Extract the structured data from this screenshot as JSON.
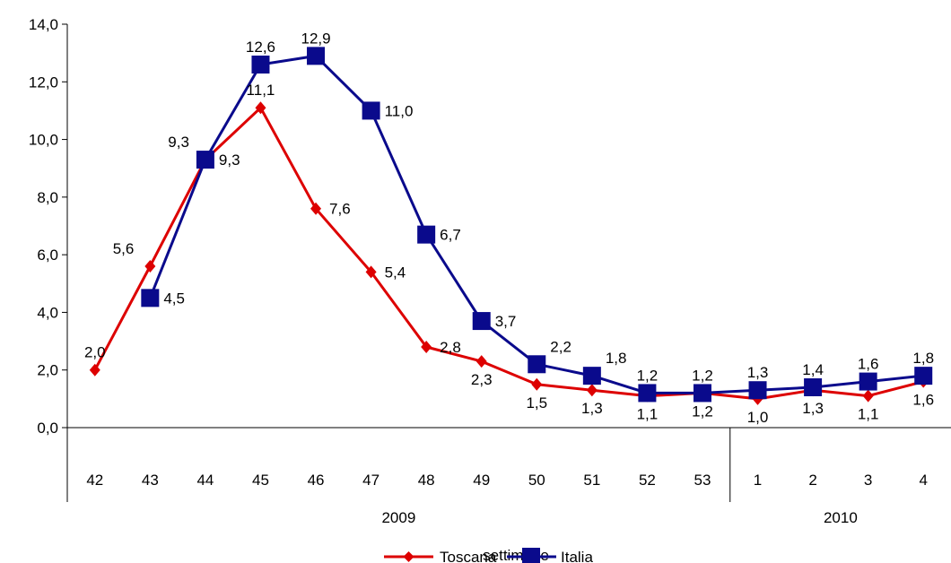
{
  "chart_data": {
    "type": "line",
    "x": [
      "42",
      "43",
      "44",
      "45",
      "46",
      "47",
      "48",
      "49",
      "50",
      "51",
      "52",
      "53",
      "1",
      "2",
      "3",
      "4"
    ],
    "groups": [
      {
        "label": "2009",
        "count": 12
      },
      {
        "label": "2010",
        "count": 4
      }
    ],
    "xlabel": "settimane",
    "ylabel": "",
    "ylim": [
      0,
      14
    ],
    "yticks": [
      "0,0",
      "2,0",
      "4,0",
      "6,0",
      "8,0",
      "10,0",
      "12,0",
      "14,0"
    ],
    "grid": false,
    "legend_position": "bottom",
    "series": [
      {
        "name": "Toscana",
        "color": "#dd0000",
        "marker": "diamond",
        "values": [
          2.0,
          5.6,
          9.3,
          11.1,
          7.6,
          5.4,
          2.8,
          2.3,
          1.5,
          1.3,
          1.1,
          1.2,
          1.0,
          1.3,
          1.1,
          1.6
        ],
        "labels": [
          "2,0",
          "5,6",
          "9,3",
          "11,1",
          "7,6",
          "5,4",
          "2,8",
          "2,3",
          "1,5",
          "1,3",
          "1,1",
          "1,2",
          "1,0",
          "1,3",
          "1,1",
          "1,6"
        ]
      },
      {
        "name": "Italia",
        "color": "#0a0a8c",
        "marker": "square",
        "values": [
          null,
          4.5,
          9.3,
          12.6,
          12.9,
          11.0,
          6.7,
          3.7,
          2.2,
          1.8,
          1.2,
          1.2,
          1.3,
          1.4,
          1.6,
          1.8
        ],
        "labels": [
          "",
          "4,5",
          "9,3",
          "12,6",
          "12,9",
          "11,0",
          "6,7",
          "3,7",
          "2,2",
          "1,8",
          "1,2",
          "1,2",
          "1,3",
          "1,4",
          "1,6",
          "1,8"
        ]
      }
    ]
  }
}
